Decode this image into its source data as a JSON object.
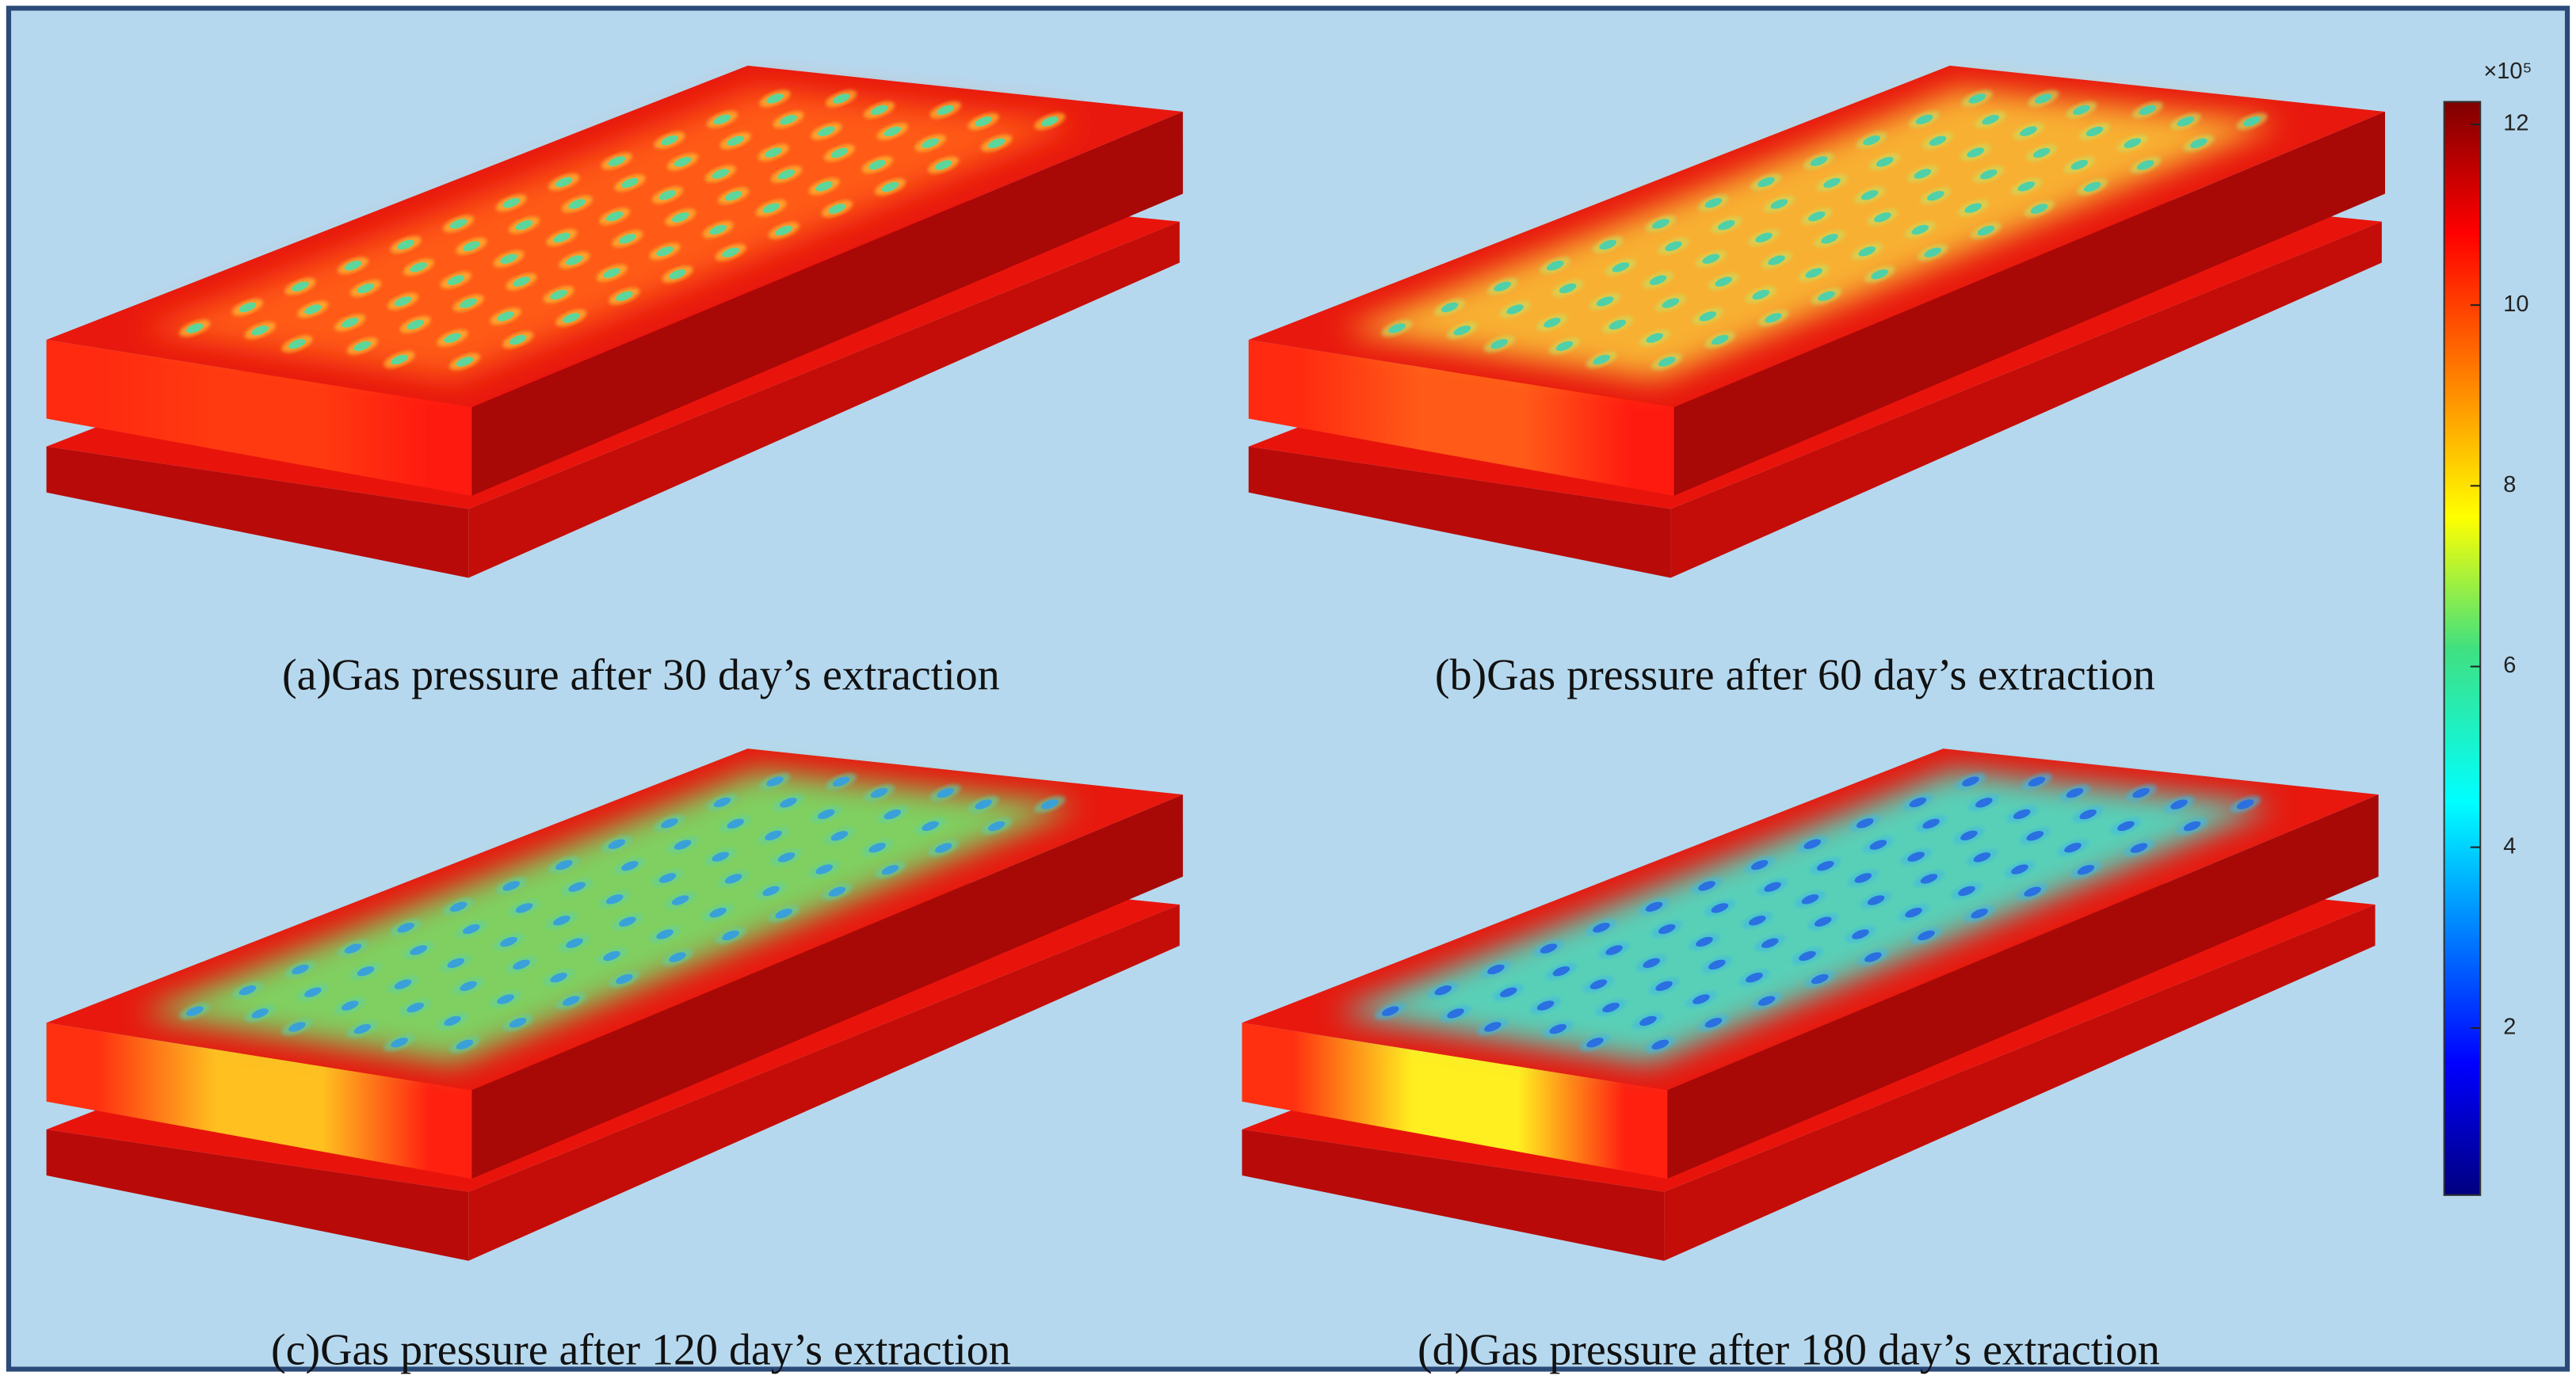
{
  "panels": [
    {
      "caption": "(a)Gas pressure after 30 day’s extraction"
    },
    {
      "caption": "(b)Gas pressure after 60 day’s extraction"
    },
    {
      "caption": "(c)Gas pressure after 120 day’s extraction"
    },
    {
      "caption": "(d)Gas pressure after 180 day’s extraction"
    }
  ],
  "colorbar": {
    "multiplier": "×10⁵",
    "range": [
      0.15,
      12.25
    ],
    "ticks": [
      2,
      4,
      6,
      8,
      10,
      12
    ]
  }
}
